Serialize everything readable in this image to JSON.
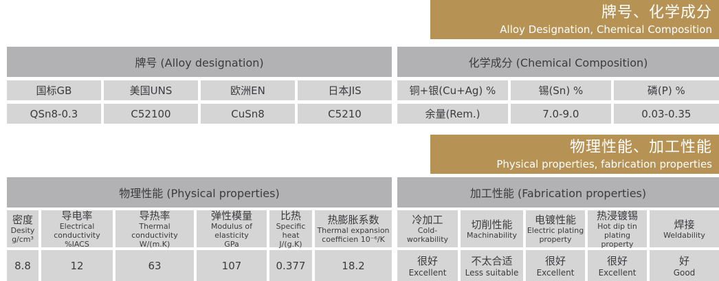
{
  "colors": {
    "banner_gold": "#b69355",
    "section_header_gray": "#b2b2b4",
    "cell_gray": "#d5d5d6",
    "text_dark": "#3b3b3d",
    "banner_text": "#ffffff"
  },
  "banner1": {
    "title_zh": "牌号、化学成分",
    "title_en": "Alloy Designation, Chemical Composition"
  },
  "banner2": {
    "title_zh": "物理性能、加工性能",
    "title_en": "Physical properties, fabrication properties"
  },
  "table1": {
    "left_header": "牌号 (Alloy designation)",
    "right_header": "化学成分 (Chemical Composition)",
    "left_columns": [
      "国标GB",
      "美国UNS",
      "欧洲EN",
      "日本JIS"
    ],
    "left_values": [
      "QSn8-0.3",
      "C52100",
      "CuSn8",
      "C5210"
    ],
    "right_columns": [
      "铜+银(Cu+Ag) %",
      "锡(Sn) %",
      "磷(P) %"
    ],
    "right_values": [
      "余量(Rem.)",
      "7.0-9.0",
      "0.03-0.35"
    ]
  },
  "table2": {
    "left_header": "物理性能 (Physical properties)",
    "right_header": "加工性能 (Fabrication properties)",
    "left_columns": [
      {
        "zh": "密度",
        "en": "Desity",
        "unit": "g/cm³"
      },
      {
        "zh": "导电率",
        "en": "Electrical conductivity",
        "unit": "%IACS"
      },
      {
        "zh": "导热率",
        "en": "Thermal conductivity",
        "unit": "W/(m.K)"
      },
      {
        "zh": "弹性模量",
        "en": "Modulus of elasticity",
        "unit": "GPa"
      },
      {
        "zh": "比热",
        "en": "Specific heat",
        "unit": "J/(g.K)"
      },
      {
        "zh": "热膨胀系数",
        "en": "Thermal expansion",
        "unit": "coefficien 10⁻⁶/K"
      }
    ],
    "left_values": [
      "8.8",
      "12",
      "63",
      "107",
      "0.377",
      "18.2"
    ],
    "right_columns": [
      {
        "zh": "冷加工",
        "en": "Cold-workability"
      },
      {
        "zh": "切削性能",
        "en": "Machinability"
      },
      {
        "zh": "电镀性能",
        "en": "Electric plating property"
      },
      {
        "zh": "热浸镀锡",
        "en": "Hot dip tin plating property"
      },
      {
        "zh": "焊接",
        "en": "Weldability"
      }
    ],
    "right_values": [
      {
        "zh": "很好",
        "en": "Excellent"
      },
      {
        "zh": "不太合适",
        "en": "Less suitable"
      },
      {
        "zh": "很好",
        "en": "Excellent"
      },
      {
        "zh": "很好",
        "en": "Excellent"
      },
      {
        "zh": "好",
        "en": "Good"
      }
    ]
  }
}
